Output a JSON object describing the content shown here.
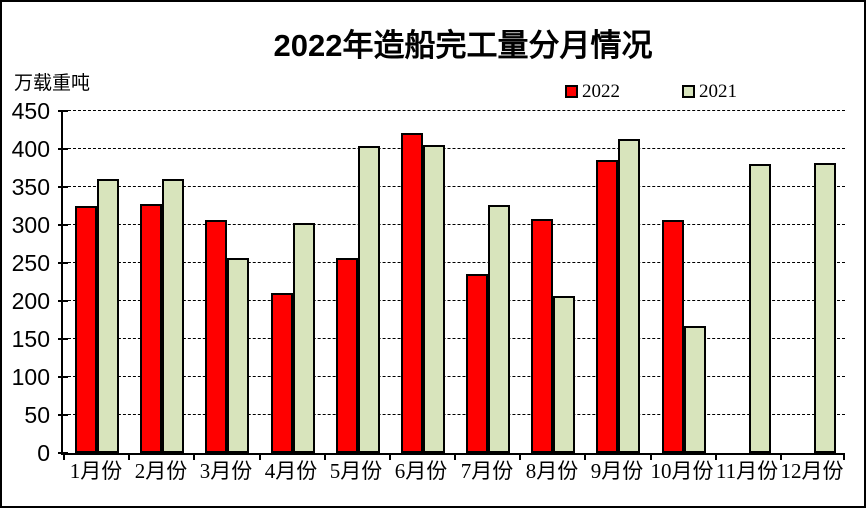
{
  "title": "2022年造船完工量分月情况",
  "unit_label": "万载重吨",
  "legend": [
    {
      "label": "2022",
      "color": "#FF0000"
    },
    {
      "label": "2021",
      "color": "#D8E4BC"
    }
  ],
  "colors": {
    "bar_border": "#000000",
    "grid": "#000000",
    "background": "#FFFFFF"
  },
  "chart_data": {
    "type": "bar",
    "title": "2022年造船完工量分月情况",
    "ylabel": "万载重吨",
    "xlabel": "",
    "categories": [
      "1月份",
      "2月份",
      "3月份",
      "4月份",
      "5月份",
      "6月份",
      "7月份",
      "8月份",
      "9月份",
      "10月份",
      "11月份",
      "12月份"
    ],
    "series": [
      {
        "name": "2022",
        "color": "#FF0000",
        "values": [
          325,
          327,
          307,
          211,
          256,
          421,
          235,
          308,
          386,
          307,
          null,
          null
        ]
      },
      {
        "name": "2021",
        "color": "#D8E4BC",
        "values": [
          361,
          361,
          256,
          302,
          404,
          405,
          326,
          207,
          413,
          167,
          380,
          381
        ]
      }
    ],
    "ylim": [
      0,
      450
    ],
    "ytick_interval": 50,
    "yticks": [
      0,
      50,
      100,
      150,
      200,
      250,
      300,
      350,
      400,
      450
    ],
    "grid": "horizontal-dashed",
    "legend_position": "top-right"
  }
}
